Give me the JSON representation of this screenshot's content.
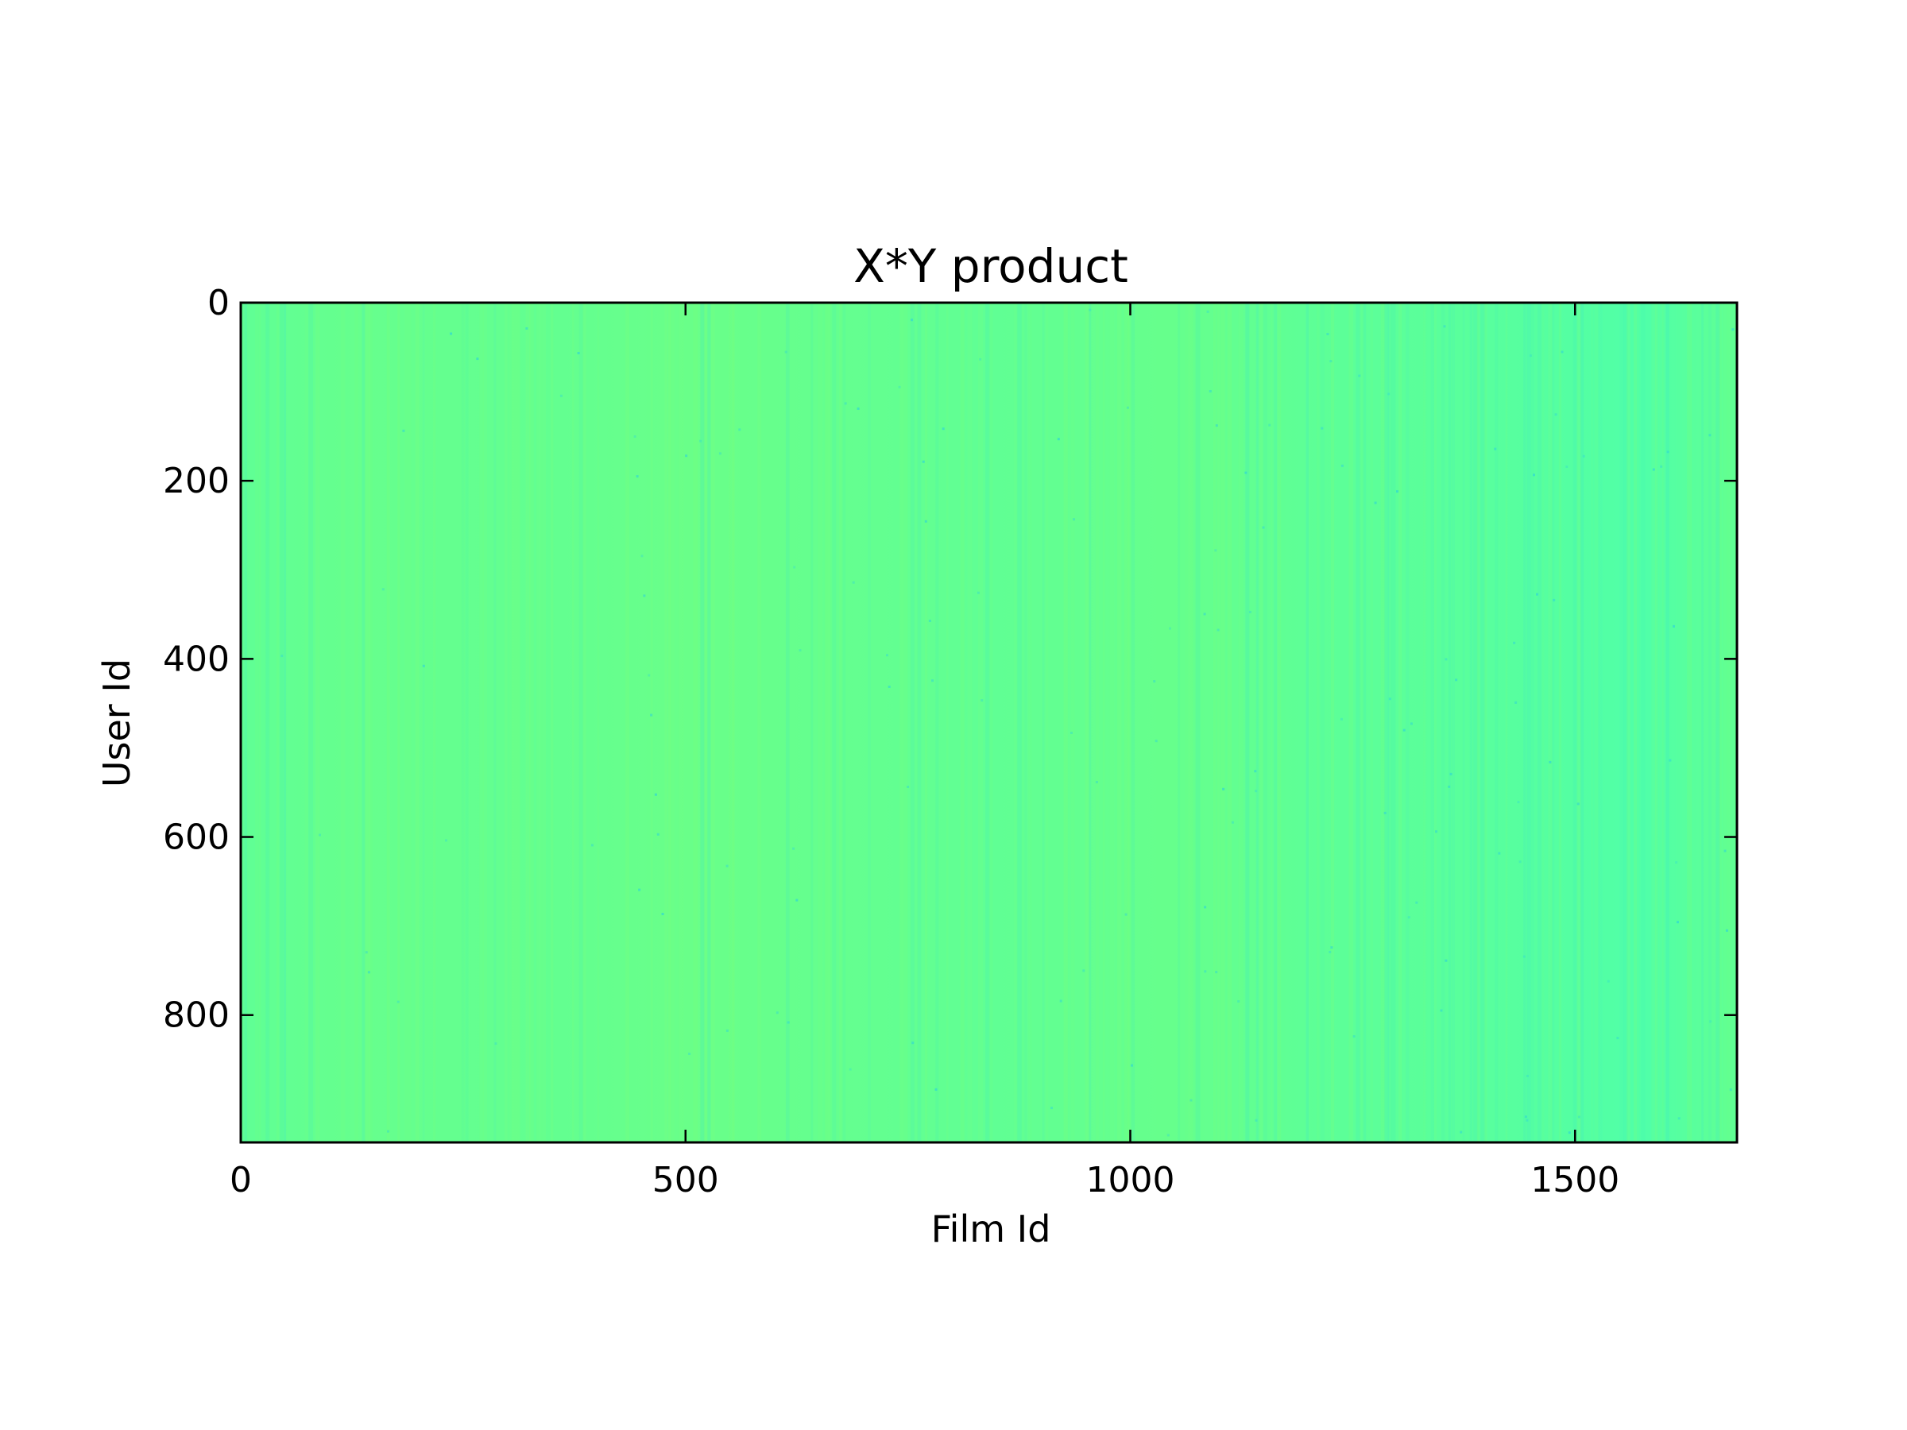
{
  "chart_data": {
    "type": "heatmap",
    "title": "X*Y product",
    "xlabel": "Film Id",
    "ylabel": "User Id",
    "xlim": [
      0,
      1682
    ],
    "ylim": [
      943,
      0
    ],
    "x_ticks": [
      0,
      500,
      1000,
      1500
    ],
    "y_ticks": [
      0,
      200,
      400,
      600,
      800
    ],
    "x_tick_labels": [
      "0",
      "500",
      "1000",
      "1500"
    ],
    "y_tick_labels": [
      "0",
      "200",
      "400",
      "600",
      "800"
    ],
    "grid": false,
    "legend": "none",
    "colormap": "winter-to-green (jet-like), values near mid-high",
    "dominant_color": "#5fff93",
    "color_range": [
      "#4dffb0",
      "#6cff86"
    ]
  }
}
